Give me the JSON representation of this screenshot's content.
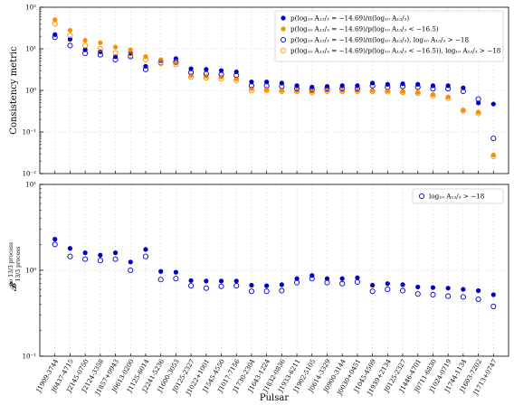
{
  "chart_data": [
    {
      "type": "scatter",
      "ylabel": "Consistency metric",
      "yscale": "log",
      "ylim": [
        0.01,
        100
      ],
      "yticks": [
        {
          "v": 0.01,
          "label": "10⁻²"
        },
        {
          "v": 0.1,
          "label": "10⁻¹"
        },
        {
          "v": 1,
          "label": "10⁰"
        },
        {
          "v": 10,
          "label": "10¹"
        },
        {
          "v": 100,
          "label": "10²"
        }
      ],
      "grid": true,
      "legend_position": "top-right",
      "series": [
        {
          "name": "p(log₁₀ A₁₃/₃ = −14.69)/π(log₁₀ A₁₃/₃)",
          "color": "#0000cc",
          "marker": "filled",
          "values": [
            22,
            17,
            9.5,
            8.5,
            6.5,
            7.8,
            3.8,
            5.2,
            5.8,
            3.3,
            3.2,
            3.0,
            2.8,
            1.6,
            1.6,
            1.5,
            1.3,
            1.2,
            1.25,
            1.3,
            1.3,
            1.5,
            1.4,
            1.45,
            1.4,
            1.3,
            1.3,
            1.15,
            0.5,
            0.47
          ]
        },
        {
          "name": "p(log₁₀ A₁₃/₃ = −14.69)/p(log₁₀ A₁₃/₃ < −16.5)",
          "color": "#ff8c00",
          "marker": "filled",
          "values": [
            50,
            28,
            16,
            14,
            11,
            9.5,
            6.5,
            5.5,
            5.0,
            2.3,
            2.2,
            2.1,
            1.9,
            1.1,
            1.05,
            1.0,
            1.0,
            0.95,
            1.0,
            1.0,
            1.0,
            1.0,
            0.98,
            0.95,
            0.9,
            0.8,
            0.7,
            0.34,
            0.3,
            0.028
          ]
        },
        {
          "name": "p(log₁₀ A₁₃/₃ = −14.69)/π(log₁₀ A₁₃/₃), log₁₀ A₁₃/₃ > −18",
          "color": "#0000cc",
          "marker": "open",
          "values": [
            19,
            12,
            7.8,
            7.2,
            5.5,
            6.5,
            3.2,
            4.6,
            4.8,
            2.7,
            2.5,
            2.4,
            2.3,
            1.3,
            1.3,
            1.25,
            1.1,
            1.05,
            1.1,
            1.1,
            1.1,
            1.3,
            1.2,
            1.25,
            1.2,
            1.1,
            1.1,
            0.95,
            0.62,
            0.07
          ]
        },
        {
          "name": "p(log₁₀ A₁₃/₃ = −14.69)/p(log₁₀ A₁₃/₃ < −16.5)), log₁₀ A₁₃/₃ > −18",
          "color": "#ff8c00",
          "marker": "open",
          "values": [
            40,
            21,
            12,
            10,
            8,
            7,
            5.5,
            4.5,
            4.2,
            2.1,
            2.0,
            1.9,
            1.75,
            1.0,
            1.0,
            0.95,
            0.95,
            0.9,
            0.95,
            0.95,
            0.95,
            0.95,
            0.93,
            0.9,
            0.85,
            0.75,
            0.65,
            0.32,
            0.28,
            0.026
          ]
        }
      ]
    },
    {
      "type": "scatter",
      "xlabel": "Pulsar",
      "ylabel_main": "𝓑",
      "ylabel_sup": "no 13/3 process",
      "ylabel_sub": "13/3 process",
      "yscale": "log",
      "ylim": [
        0.1,
        10
      ],
      "yticks": [
        {
          "v": 0.1,
          "label": "10⁻¹"
        },
        {
          "v": 1,
          "label": "10⁰"
        },
        {
          "v": 10,
          "label": "10¹"
        }
      ],
      "grid": true,
      "legend_position": "top-right",
      "series": [
        {
          "color": "#0000cc",
          "marker": "filled",
          "values": [
            2.3,
            1.8,
            1.6,
            1.5,
            1.6,
            1.25,
            1.75,
            0.97,
            0.95,
            0.76,
            0.75,
            0.75,
            0.75,
            0.67,
            0.66,
            0.68,
            0.8,
            0.87,
            0.8,
            0.8,
            0.82,
            0.67,
            0.7,
            0.68,
            0.64,
            0.63,
            0.62,
            0.6,
            0.58,
            0.52
          ]
        },
        {
          "name": "log₁₀ A₁₃/₃ > −18",
          "color": "#0000cc",
          "marker": "open",
          "values": [
            2.0,
            1.45,
            1.35,
            1.3,
            1.35,
            1.0,
            1.45,
            0.78,
            0.8,
            0.66,
            0.62,
            0.65,
            0.66,
            0.57,
            0.57,
            0.58,
            0.72,
            0.8,
            0.72,
            0.7,
            0.73,
            0.57,
            0.6,
            0.58,
            0.53,
            0.52,
            0.5,
            0.49,
            0.46,
            0.38
          ]
        }
      ]
    }
  ],
  "categories": [
    "J1909-3744",
    "J0437-4715",
    "J2145-0750",
    "J2124-3358",
    "J1857+0943",
    "J0613-0200",
    "J1125-6014",
    "J2241-5236",
    "J1600-3053",
    "J0125-2327",
    "J1022+1001",
    "J1545-4550",
    "J1017-7156",
    "J1730-2304",
    "J1643-1224",
    "J1832-0836",
    "J1933-6211",
    "J1902-5105",
    "J0614-3329",
    "J0900-3144",
    "J0030+0451",
    "J1045-4509",
    "J1939+2134",
    "J0125-2327",
    "J1446-4701",
    "J0711-6830",
    "J1024-0719",
    "J1744-1134",
    "J1603-7202",
    "J1713+0747"
  ]
}
